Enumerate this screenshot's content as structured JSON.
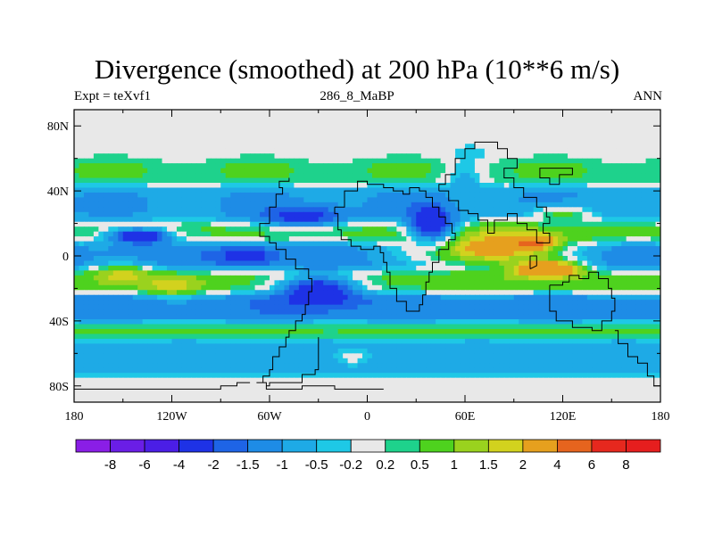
{
  "chart_data": {
    "type": "heatmap",
    "title": "Divergence (smoothed) at 200 hPa (10**6 m/s)",
    "left_label": "Expt = teXvf1",
    "center_label": "286_8_MaBP",
    "right_label": "ANN",
    "x_ticks": [
      "180",
      "120W",
      "60W",
      "0",
      "60E",
      "120E",
      "180"
    ],
    "x_tick_values": [
      -180,
      -120,
      -60,
      0,
      60,
      120,
      180
    ],
    "y_ticks": [
      "80N",
      "40N",
      "0",
      "40S",
      "80S"
    ],
    "y_tick_values": [
      80,
      40,
      0,
      -40,
      -80
    ],
    "xlim": [
      -180,
      180
    ],
    "ylim": [
      -90,
      90
    ],
    "colorbar": {
      "labels": [
        "-8",
        "-6",
        "-4",
        "-2",
        "-1.5",
        "-1",
        "-0.5",
        "-0.2",
        "0.2",
        "0.5",
        "1",
        "1.5",
        "2",
        "4",
        "6",
        "8"
      ],
      "colors": [
        "#8a1ee6",
        "#6a1ee6",
        "#4b1ee6",
        "#1e32e6",
        "#1e64e6",
        "#1e8ce6",
        "#1eaae6",
        "#1ec8e6",
        "#e8e8e8",
        "#1ed28c",
        "#4ed21e",
        "#9ad21e",
        "#d2d21e",
        "#e6a01e",
        "#e6641e",
        "#e6281e",
        "#e61e1e"
      ]
    },
    "field_bands": [
      {
        "lat": [
          60,
          90
        ],
        "value": 0
      },
      {
        "lat": [
          45,
          58
        ],
        "value": 0.5
      },
      {
        "lat": [
          22,
          42
        ],
        "value": -1
      },
      {
        "lat": [
          8,
          20
        ],
        "value": 0.6
      },
      {
        "lat": [
          -8,
          8
        ],
        "value": -1.2
      },
      {
        "lat": [
          -22,
          -10
        ],
        "value": 0.7
      },
      {
        "lat": [
          -40,
          -24
        ],
        "value": -1.3
      },
      {
        "lat": [
          -50,
          -42
        ],
        "value": 0.6
      },
      {
        "lat": [
          -72,
          -52
        ],
        "value": -0.8
      },
      {
        "lat": [
          -90,
          -74
        ],
        "value": 0
      }
    ],
    "field_blobs": [
      {
        "lon": 75,
        "lat": 5,
        "rlon": 45,
        "rlat": 12,
        "value": 2.5
      },
      {
        "lon": 100,
        "lat": 8,
        "rlon": 12,
        "rlat": 4,
        "value": 5
      },
      {
        "lon": 110,
        "lat": -8,
        "rlon": 20,
        "rlat": 5,
        "value": 4
      },
      {
        "lon": -30,
        "lat": -22,
        "rlon": 25,
        "rlat": 10,
        "value": -3
      },
      {
        "lon": 40,
        "lat": 20,
        "rlon": 15,
        "rlat": 12,
        "value": -3
      },
      {
        "lon": -75,
        "lat": 0,
        "rlon": 20,
        "rlat": 6,
        "value": -2.5
      },
      {
        "lon": -140,
        "lat": 12,
        "rlon": 20,
        "rlat": 5,
        "value": -3
      },
      {
        "lon": -40,
        "lat": 24,
        "rlon": 25,
        "rlat": 6,
        "value": -2.5
      },
      {
        "lon": 60,
        "lat": 42,
        "rlon": 12,
        "rlat": 18,
        "value": -0.8
      },
      {
        "lon": -150,
        "lat": -12,
        "rlon": 18,
        "rlat": 6,
        "value": 1.8
      },
      {
        "lon": -120,
        "lat": -18,
        "rlon": 18,
        "rlat": 6,
        "value": 1.8
      },
      {
        "lon": 120,
        "lat": 25,
        "rlon": 20,
        "rlat": 6,
        "value": 0.6
      },
      {
        "lon": -10,
        "lat": -62,
        "rlon": 12,
        "rlat": 6,
        "value": 0
      }
    ]
  }
}
